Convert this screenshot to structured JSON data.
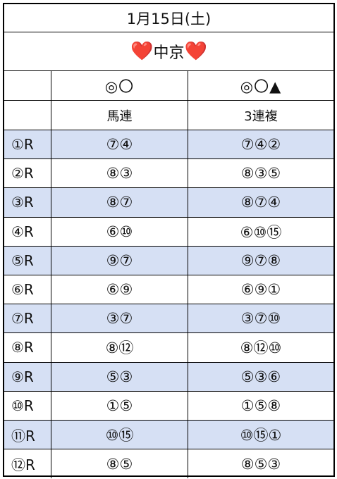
{
  "title": "1月15日(土)",
  "venue": {
    "heart_left": "❤️",
    "name": "中京",
    "heart_right": "❤️"
  },
  "header": {
    "col1_symbols": "◎〇",
    "col2_symbols": "◎〇▲",
    "col1_type": "馬連",
    "col2_type": "3連複"
  },
  "colors": {
    "row_shade": "#d6e0f4",
    "grid": "#000000",
    "heart": "#e53935"
  },
  "races": [
    {
      "race": "①R",
      "umaren": "⑦④",
      "sanrenpuku": "⑦④②"
    },
    {
      "race": "②R",
      "umaren": "⑧③",
      "sanrenpuku": "⑧③⑤"
    },
    {
      "race": "③R",
      "umaren": "⑧⑦",
      "sanrenpuku": "⑧⑦④"
    },
    {
      "race": "④R",
      "umaren": "⑥⑩",
      "sanrenpuku": "⑥⑩⑮"
    },
    {
      "race": "⑤R",
      "umaren": "⑨⑦",
      "sanrenpuku": "⑨⑦⑧"
    },
    {
      "race": "⑥R",
      "umaren": "⑥⑨",
      "sanrenpuku": "⑥⑨①"
    },
    {
      "race": "⑦R",
      "umaren": "③⑦",
      "sanrenpuku": "③⑦⑩"
    },
    {
      "race": "⑧R",
      "umaren": "⑧⑫",
      "sanrenpuku": "⑧⑫⑩"
    },
    {
      "race": "⑨R",
      "umaren": "⑤③",
      "sanrenpuku": "⑤③⑥"
    },
    {
      "race": "⑩R",
      "umaren": "①⑤",
      "sanrenpuku": "①⑤⑧"
    },
    {
      "race": "⑪R",
      "umaren": "⑩⑮",
      "sanrenpuku": "⑩⑮①"
    },
    {
      "race": "⑫R",
      "umaren": "⑧⑤",
      "sanrenpuku": "⑧⑤③"
    }
  ]
}
